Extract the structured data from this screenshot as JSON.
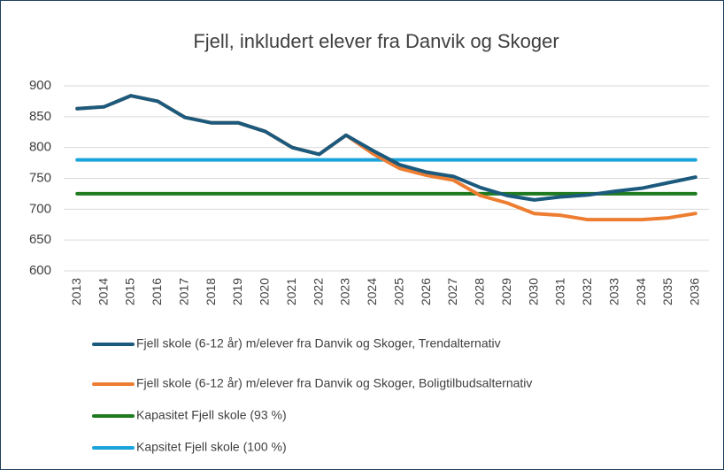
{
  "chart_data": {
    "type": "line",
    "title": "Fjell, inkludert elever fra Danvik og Skoger",
    "categories": [
      "2013",
      "2014",
      "2015",
      "2016",
      "2017",
      "2018",
      "2019",
      "2020",
      "2021",
      "2022",
      "2023",
      "2024",
      "2025",
      "2026",
      "2027",
      "2028",
      "2029",
      "2030",
      "2031",
      "2032",
      "2033",
      "2034",
      "2035",
      "2036"
    ],
    "series": [
      {
        "name": "Fjell skole (6-12 år) m/elever fra Danvik og Skoger, Trendalternativ",
        "color": "#1c5a7d",
        "values": [
          863,
          866,
          884,
          875,
          849,
          840,
          840,
          826,
          800,
          789,
          820,
          795,
          772,
          760,
          753,
          735,
          722,
          715,
          720,
          723,
          729,
          734,
          743,
          752
        ]
      },
      {
        "name": "Fjell skole (6-12 år) m/elever fra Danvik og Skoger, Boligtilbudsalternativ",
        "color": "#ed7d31",
        "values": [
          863,
          866,
          884,
          875,
          849,
          840,
          840,
          826,
          800,
          789,
          820,
          790,
          766,
          755,
          747,
          722,
          710,
          693,
          690,
          683,
          683,
          683,
          686,
          693
        ]
      },
      {
        "name": "Kapasitet Fjell skole (93 %)",
        "color": "#1f7a1f",
        "values": [
          725,
          725,
          725,
          725,
          725,
          725,
          725,
          725,
          725,
          725,
          725,
          725,
          725,
          725,
          725,
          725,
          725,
          725,
          725,
          725,
          725,
          725,
          725,
          725
        ]
      },
      {
        "name": "Kapsitet Fjell skole (100 %)",
        "color": "#1ba3dc",
        "values": [
          780,
          780,
          780,
          780,
          780,
          780,
          780,
          780,
          780,
          780,
          780,
          780,
          780,
          780,
          780,
          780,
          780,
          780,
          780,
          780,
          780,
          780,
          780,
          780
        ]
      }
    ],
    "ylim": [
      600,
      900
    ],
    "yticks": [
      600,
      650,
      700,
      750,
      800,
      850,
      900
    ],
    "grid": true
  }
}
